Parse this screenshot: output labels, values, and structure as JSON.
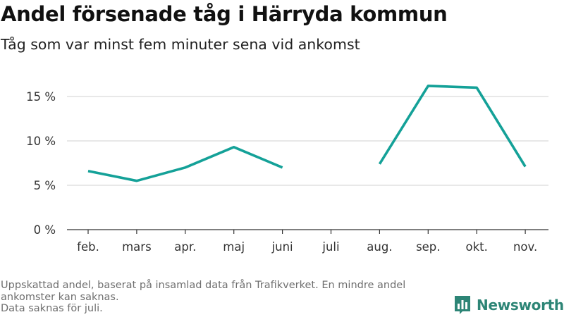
{
  "title": "Andel försenade tåg i Härryda kommun",
  "subtitle": "Tåg som var minst fem minuter sena vid ankomst",
  "footnote": {
    "line1": "Uppskattad andel, baserat på insamlad data från Trafikverket. En mindre andel",
    "line2": "ankomster kan saknas.",
    "line3": "Data saknas för juli."
  },
  "brand": {
    "name": "Newsworthy",
    "icon": "bar-chart-icon",
    "color": "#2d8576"
  },
  "chart_data": {
    "type": "line",
    "categories": [
      "feb.",
      "mars",
      "apr.",
      "maj",
      "juni",
      "juli",
      "aug.",
      "sep.",
      "okt.",
      "nov."
    ],
    "series": [
      {
        "values": [
          6.6,
          5.5,
          7.0,
          9.3,
          7.0,
          null,
          7.4,
          16.2,
          16.0,
          7.1
        ]
      }
    ],
    "yticks": [
      0,
      5,
      10,
      15
    ],
    "ytick_labels": [
      "0 %",
      "5 %",
      "10 %",
      "15 %"
    ],
    "ylim": [
      0,
      17
    ],
    "grid": true,
    "line_color": "#14a198",
    "grid_color": "#d9d9d9",
    "axis_color": "#333333"
  }
}
